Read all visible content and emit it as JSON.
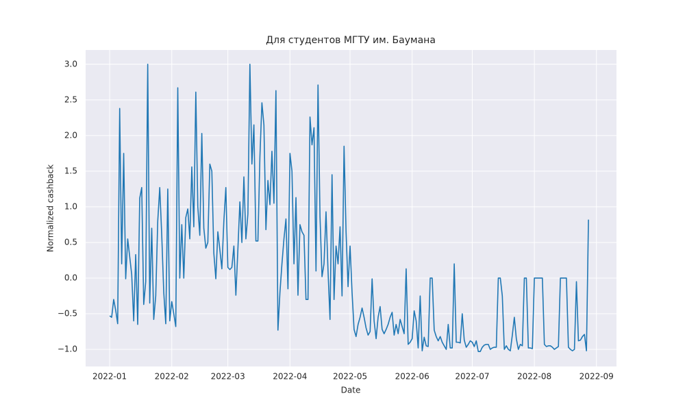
{
  "chart_data": {
    "type": "line",
    "title": "Для студентов МГТУ им. Баумана",
    "xlabel": "Date",
    "ylabel": "Normalized cashback",
    "color": "#1f77b4",
    "grid": true,
    "xlim": [
      "2021-12-20",
      "2022-09-11"
    ],
    "xticks": [
      {
        "value": "2022-01-01",
        "label": "2022-01"
      },
      {
        "value": "2022-02-01",
        "label": "2022-02"
      },
      {
        "value": "2022-03-01",
        "label": "2022-03"
      },
      {
        "value": "2022-04-01",
        "label": "2022-04"
      },
      {
        "value": "2022-05-01",
        "label": "2022-05"
      },
      {
        "value": "2022-06-01",
        "label": "2022-06"
      },
      {
        "value": "2022-07-01",
        "label": "2022-07"
      },
      {
        "value": "2022-08-01",
        "label": "2022-08"
      },
      {
        "value": "2022-09-01",
        "label": "2022-09"
      }
    ],
    "ylim": [
      -1.24,
      3.2
    ],
    "yticks": [
      {
        "value": -1,
        "label": "−1.0"
      },
      {
        "value": -0.5,
        "label": "−0.5"
      },
      {
        "value": 0,
        "label": "0.0"
      },
      0.5,
      {
        "value": 1,
        "label": "1.0"
      },
      1.5,
      {
        "value": 2,
        "label": "2.0"
      },
      2.5,
      {
        "value": 3,
        "label": "3.0"
      }
    ],
    "x": [
      "2022-01-01",
      "2022-01-02",
      "2022-01-03",
      "2022-01-04",
      "2022-01-05",
      "2022-01-06",
      "2022-01-07",
      "2022-01-08",
      "2022-01-09",
      "2022-01-10",
      "2022-01-11",
      "2022-01-12",
      "2022-01-13",
      "2022-01-14",
      "2022-01-15",
      "2022-01-16",
      "2022-01-17",
      "2022-01-18",
      "2022-01-19",
      "2022-01-20",
      "2022-01-21",
      "2022-01-22",
      "2022-01-23",
      "2022-01-24",
      "2022-01-25",
      "2022-01-26",
      "2022-01-27",
      "2022-01-28",
      "2022-01-29",
      "2022-01-30",
      "2022-01-31",
      "2022-02-01",
      "2022-02-02",
      "2022-02-03",
      "2022-02-04",
      "2022-02-05",
      "2022-02-06",
      "2022-02-07",
      "2022-02-08",
      "2022-02-09",
      "2022-02-10",
      "2022-02-11",
      "2022-02-12",
      "2022-02-13",
      "2022-02-14",
      "2022-02-15",
      "2022-02-16",
      "2022-02-17",
      "2022-02-18",
      "2022-02-19",
      "2022-02-20",
      "2022-02-21",
      "2022-02-22",
      "2022-02-23",
      "2022-02-24",
      "2022-02-25",
      "2022-02-26",
      "2022-02-27",
      "2022-02-28",
      "2022-03-01",
      "2022-03-02",
      "2022-03-03",
      "2022-03-04",
      "2022-03-05",
      "2022-03-06",
      "2022-03-07",
      "2022-03-08",
      "2022-03-09",
      "2022-03-10",
      "2022-03-11",
      "2022-03-12",
      "2022-03-13",
      "2022-03-14",
      "2022-03-15",
      "2022-03-16",
      "2022-03-17",
      "2022-03-18",
      "2022-03-19",
      "2022-03-20",
      "2022-03-21",
      "2022-03-22",
      "2022-03-23",
      "2022-03-24",
      "2022-03-25",
      "2022-03-26",
      "2022-03-27",
      "2022-03-28",
      "2022-03-29",
      "2022-03-30",
      "2022-03-31",
      "2022-04-01",
      "2022-04-02",
      "2022-04-03",
      "2022-04-04",
      "2022-04-05",
      "2022-04-06",
      "2022-04-07",
      "2022-04-08",
      "2022-04-09",
      "2022-04-10",
      "2022-04-11",
      "2022-04-12",
      "2022-04-13",
      "2022-04-14",
      "2022-04-15",
      "2022-04-16",
      "2022-04-17",
      "2022-04-18",
      "2022-04-19",
      "2022-04-20",
      "2022-04-21",
      "2022-04-22",
      "2022-04-23",
      "2022-04-24",
      "2022-04-25",
      "2022-04-26",
      "2022-04-27",
      "2022-04-28",
      "2022-04-29",
      "2022-04-30",
      "2022-05-01",
      "2022-05-02",
      "2022-05-03",
      "2022-05-04",
      "2022-05-05",
      "2022-05-06",
      "2022-05-07",
      "2022-05-08",
      "2022-05-09",
      "2022-05-10",
      "2022-05-11",
      "2022-05-12",
      "2022-05-13",
      "2022-05-14",
      "2022-05-15",
      "2022-05-16",
      "2022-05-17",
      "2022-05-18",
      "2022-05-19",
      "2022-05-20",
      "2022-05-21",
      "2022-05-22",
      "2022-05-23",
      "2022-05-24",
      "2022-05-25",
      "2022-05-26",
      "2022-05-27",
      "2022-05-28",
      "2022-05-29",
      "2022-05-30",
      "2022-05-31",
      "2022-06-01",
      "2022-06-02",
      "2022-06-03",
      "2022-06-04",
      "2022-06-05",
      "2022-06-06",
      "2022-06-07",
      "2022-06-08",
      "2022-06-09",
      "2022-06-10",
      "2022-06-11",
      "2022-06-12",
      "2022-06-13",
      "2022-06-14",
      "2022-06-15",
      "2022-06-16",
      "2022-06-17",
      "2022-06-18",
      "2022-06-19",
      "2022-06-20",
      "2022-06-21",
      "2022-06-22",
      "2022-06-23",
      "2022-06-24",
      "2022-06-25",
      "2022-06-26",
      "2022-06-27",
      "2022-06-28",
      "2022-06-29",
      "2022-06-30",
      "2022-07-01",
      "2022-07-02",
      "2022-07-03",
      "2022-07-04",
      "2022-07-05",
      "2022-07-06",
      "2022-07-07",
      "2022-07-08",
      "2022-07-09",
      "2022-07-10",
      "2022-07-11",
      "2022-07-12",
      "2022-07-13",
      "2022-07-14",
      "2022-07-15",
      "2022-07-16",
      "2022-07-17",
      "2022-07-18",
      "2022-07-19",
      "2022-07-20",
      "2022-07-21",
      "2022-07-22",
      "2022-07-23",
      "2022-07-24",
      "2022-07-25",
      "2022-07-26",
      "2022-07-27",
      "2022-07-28",
      "2022-07-29",
      "2022-07-30",
      "2022-07-31",
      "2022-08-01",
      "2022-08-02",
      "2022-08-03",
      "2022-08-04",
      "2022-08-05",
      "2022-08-06",
      "2022-08-07",
      "2022-08-08",
      "2022-08-09",
      "2022-08-10",
      "2022-08-11",
      "2022-08-12",
      "2022-08-13",
      "2022-08-14",
      "2022-08-15",
      "2022-08-16",
      "2022-08-17",
      "2022-08-18",
      "2022-08-19",
      "2022-08-20",
      "2022-08-21",
      "2022-08-22",
      "2022-08-23",
      "2022-08-24",
      "2022-08-25",
      "2022-08-26",
      "2022-08-27",
      "2022-08-28"
    ],
    "values": [
      -0.53,
      -0.55,
      -0.3,
      -0.45,
      -0.64,
      2.38,
      0.2,
      1.75,
      -0.01,
      0.55,
      0.3,
      0.05,
      -0.6,
      0.33,
      -0.65,
      1.12,
      1.27,
      -0.37,
      -0.05,
      3.0,
      -0.35,
      0.7,
      -0.58,
      -0.25,
      0.8,
      1.27,
      0.6,
      -0.2,
      -0.64,
      1.25,
      -0.6,
      -0.33,
      -0.5,
      -0.68,
      2.67,
      0.0,
      0.75,
      0.0,
      0.85,
      0.97,
      0.55,
      1.56,
      0.72,
      2.61,
      1.0,
      0.6,
      2.03,
      0.7,
      0.42,
      0.5,
      1.6,
      1.5,
      0.35,
      -0.01,
      0.65,
      0.4,
      0.13,
      0.8,
      1.27,
      0.15,
      0.12,
      0.15,
      0.45,
      -0.24,
      0.4,
      1.07,
      0.5,
      1.42,
      0.55,
      0.9,
      3.0,
      1.6,
      2.15,
      0.52,
      0.52,
      1.7,
      2.46,
      2.15,
      0.68,
      1.37,
      1.03,
      1.78,
      1.05,
      2.63,
      -0.73,
      -0.2,
      0.2,
      0.55,
      0.83,
      -0.15,
      1.75,
      1.5,
      0.2,
      1.13,
      -0.24,
      0.75,
      0.65,
      0.6,
      -0.3,
      -0.3,
      2.26,
      1.87,
      2.11,
      0.1,
      2.71,
      0.86,
      0.02,
      0.2,
      0.93,
      0.1,
      -0.58,
      1.45,
      -0.3,
      0.45,
      0.2,
      0.72,
      -0.25,
      1.85,
      0.65,
      -0.12,
      0.45,
      -0.2,
      -0.72,
      -0.82,
      -0.65,
      -0.55,
      -0.42,
      -0.55,
      -0.7,
      -0.8,
      -0.75,
      -0.01,
      -0.6,
      -0.85,
      -0.55,
      -0.4,
      -0.72,
      -0.78,
      -0.72,
      -0.65,
      -0.55,
      -0.48,
      -0.8,
      -0.65,
      -0.78,
      -0.58,
      -0.68,
      -0.78,
      0.13,
      -0.93,
      -0.9,
      -0.85,
      -0.46,
      -0.6,
      -0.98,
      -0.25,
      -1.02,
      -0.83,
      -0.95,
      -0.96,
      0.0,
      0.0,
      -0.73,
      -0.82,
      -0.88,
      -0.82,
      -0.9,
      -0.95,
      -1.0,
      -0.65,
      -0.98,
      -0.98,
      0.2,
      -0.9,
      -0.9,
      -0.91,
      -0.5,
      -0.87,
      -0.97,
      -0.93,
      -0.88,
      -0.9,
      -0.96,
      -0.88,
      -1.03,
      -1.03,
      -0.97,
      -0.94,
      -0.93,
      -0.93,
      -1.0,
      -0.98,
      -0.97,
      -0.97,
      0.0,
      0.0,
      -0.25,
      -1.0,
      -0.95,
      -1.0,
      -1.02,
      -0.8,
      -0.55,
      -0.85,
      -1.0,
      -0.93,
      -0.95,
      0.0,
      0.0,
      -0.98,
      -0.98,
      -0.99,
      0.0,
      0.0,
      0.0,
      0.0,
      0.0,
      -0.93,
      -0.96,
      -0.95,
      -0.95,
      -0.97,
      -1.0,
      -0.98,
      -0.96,
      0.0,
      0.0,
      0.0,
      0.0,
      -0.97,
      -1.0,
      -1.02,
      -1.0,
      -0.05,
      -0.88,
      -0.87,
      -0.82,
      -0.79,
      -1.02,
      0.82
    ]
  }
}
